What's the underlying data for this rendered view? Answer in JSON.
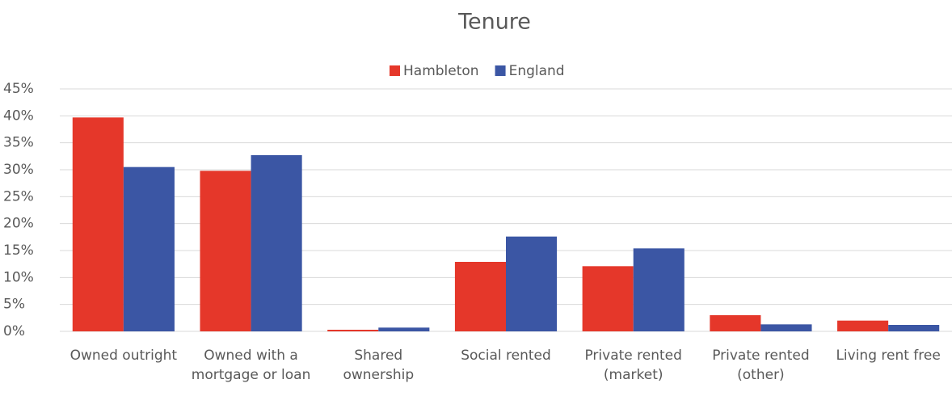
{
  "chart_data": {
    "type": "bar",
    "title": "Tenure",
    "categories": [
      "Owned outright",
      "Owned with a mortgage or loan",
      "Shared ownership",
      "Social rented",
      "Private rented (market)",
      "Private rented (other)",
      "Living rent free"
    ],
    "series": [
      {
        "name": "Hambleton",
        "color": "#e5372a",
        "values": [
          39.7,
          29.8,
          0.3,
          12.9,
          12.1,
          3.0,
          2.0
        ]
      },
      {
        "name": "England",
        "color": "#3b56a4",
        "values": [
          30.5,
          32.7,
          0.7,
          17.6,
          15.4,
          1.3,
          1.2
        ]
      }
    ],
    "ylim": [
      0,
      45
    ],
    "yticks": [
      {
        "value": 0,
        "label": "0%"
      },
      {
        "value": 5,
        "label": "5%"
      },
      {
        "value": 10,
        "label": "10%"
      },
      {
        "value": 15,
        "label": "15%"
      },
      {
        "value": 20,
        "label": "20%"
      },
      {
        "value": 25,
        "label": "25%"
      },
      {
        "value": 30,
        "label": "30%"
      },
      {
        "value": 35,
        "label": "35%"
      },
      {
        "value": 40,
        "label": "40%"
      },
      {
        "value": 45,
        "label": "45%"
      }
    ],
    "grid": true,
    "legend": "top"
  }
}
